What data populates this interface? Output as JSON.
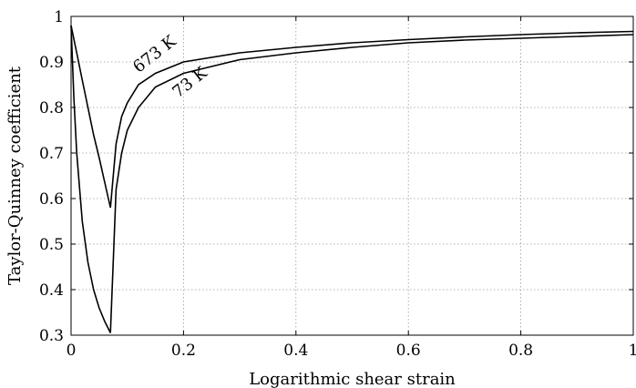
{
  "chart_data": {
    "type": "line",
    "xlabel": "Logarithmic shear strain",
    "ylabel": "Taylor-Quinney coefficient",
    "xlim": [
      0,
      1
    ],
    "ylim": [
      0.3,
      1
    ],
    "xticks": [
      "0",
      "0.2",
      "0.4",
      "0.6",
      "0.8",
      "1"
    ],
    "yticks": [
      "0.3",
      "0.4",
      "0.5",
      "0.6",
      "0.7",
      "0.8",
      "0.9",
      "1"
    ],
    "grid": true,
    "series": [
      {
        "name": "673 K",
        "x": [
          0,
          0.01,
          0.02,
          0.03,
          0.04,
          0.05,
          0.06,
          0.07,
          0.08,
          0.09,
          0.1,
          0.12,
          0.15,
          0.2,
          0.3,
          0.4,
          0.5,
          0.6,
          0.7,
          0.8,
          0.9,
          1.0
        ],
        "y": [
          0.98,
          0.92,
          0.86,
          0.8,
          0.74,
          0.69,
          0.635,
          0.58,
          0.72,
          0.78,
          0.81,
          0.85,
          0.875,
          0.9,
          0.92,
          0.932,
          0.942,
          0.949,
          0.955,
          0.96,
          0.964,
          0.967
        ]
      },
      {
        "name": "73 K",
        "x": [
          0,
          0.005,
          0.01,
          0.02,
          0.03,
          0.04,
          0.05,
          0.06,
          0.07,
          0.08,
          0.09,
          0.1,
          0.12,
          0.15,
          0.2,
          0.3,
          0.4,
          0.5,
          0.6,
          0.7,
          0.8,
          0.9,
          1.0
        ],
        "y": [
          0.98,
          0.82,
          0.7,
          0.55,
          0.46,
          0.4,
          0.36,
          0.33,
          0.305,
          0.62,
          0.7,
          0.75,
          0.8,
          0.845,
          0.875,
          0.905,
          0.92,
          0.932,
          0.942,
          0.948,
          0.952,
          0.956,
          0.96
        ]
      }
    ],
    "annotations": [
      {
        "text": "673 K",
        "x": 0.12,
        "y": 0.875,
        "angle": -38
      },
      {
        "text": "73 K",
        "x": 0.19,
        "y": 0.82,
        "angle": -38
      }
    ]
  }
}
